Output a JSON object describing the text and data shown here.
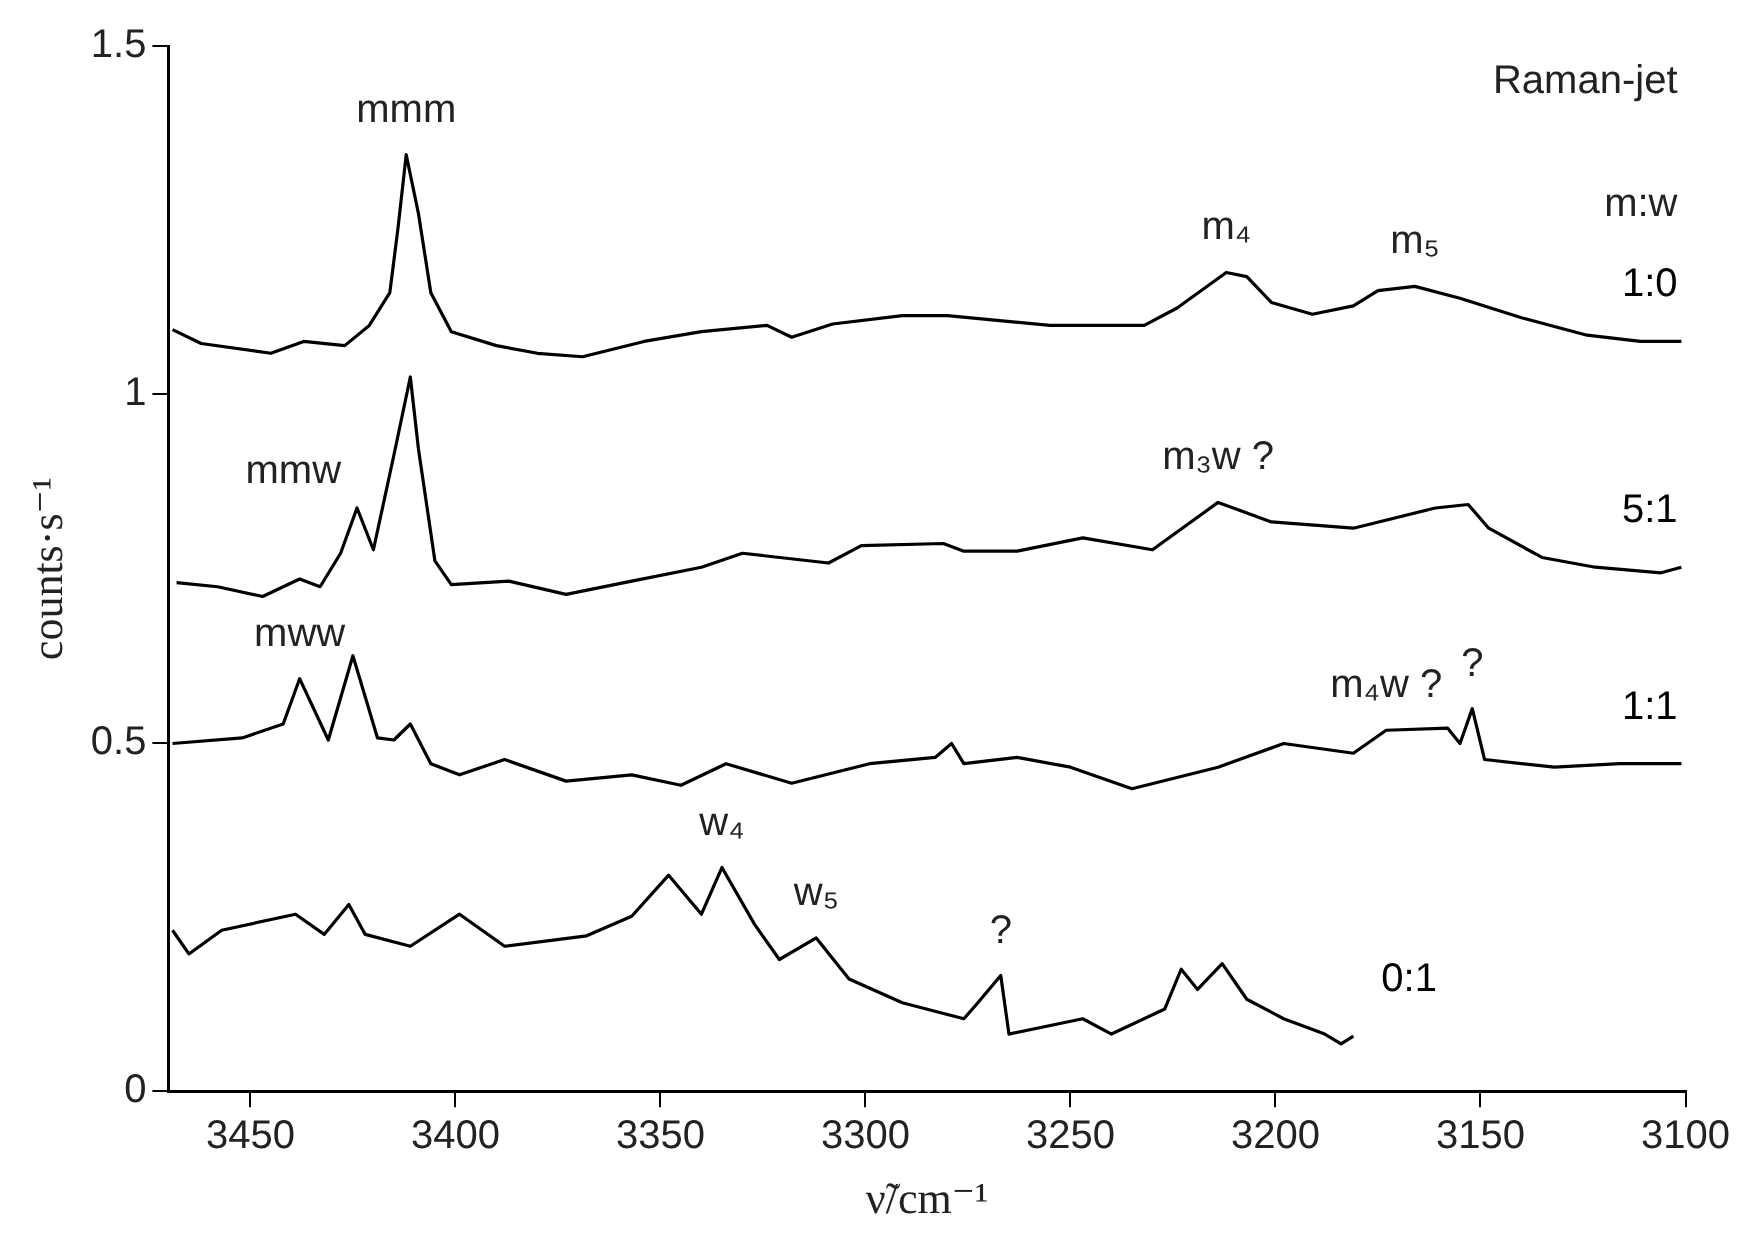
{
  "chart_data": {
    "type": "line",
    "xlabel": "ν̃/cm⁻¹",
    "ylabel": "counts·s⁻¹",
    "legend_title": "m:w",
    "marker": "none",
    "line_style": "solid",
    "grid": false,
    "xlim": [
      3470,
      3100
    ],
    "xticks": [
      3450,
      3400,
      3350,
      3300,
      3250,
      3200,
      3150,
      3100
    ],
    "ylim": [
      0,
      1.5
    ],
    "yticks": [
      0,
      0.5,
      1,
      1.5
    ],
    "series": [
      {
        "name": "1:0",
        "color": "#000000",
        "x": [
          3469,
          3462,
          3445,
          3437,
          3427,
          3421,
          3416,
          3414,
          3412,
          3409,
          3406,
          3401,
          3390,
          3380,
          3369,
          3354,
          3340,
          3324,
          3318,
          3308,
          3291,
          3280,
          3255,
          3232,
          3224,
          3212,
          3207,
          3201,
          3191,
          3181,
          3175,
          3166,
          3155,
          3140,
          3124,
          3111,
          3101
        ],
        "values": [
          1.093,
          1.073,
          1.059,
          1.076,
          1.07,
          1.099,
          1.146,
          1.239,
          1.344,
          1.259,
          1.146,
          1.09,
          1.07,
          1.059,
          1.054,
          1.076,
          1.09,
          1.099,
          1.082,
          1.101,
          1.113,
          1.113,
          1.099,
          1.099,
          1.124,
          1.175,
          1.169,
          1.132,
          1.115,
          1.127,
          1.149,
          1.155,
          1.138,
          1.11,
          1.085,
          1.076,
          1.076
        ]
      },
      {
        "name": "5:1",
        "color": "#000000",
        "x": [
          3468,
          3458,
          3447,
          3438,
          3433,
          3428,
          3424,
          3420,
          3415,
          3411,
          3409,
          3405,
          3401,
          3387,
          3373,
          3357,
          3340,
          3330,
          3309,
          3301,
          3281,
          3276,
          3263,
          3247,
          3230,
          3214,
          3201,
          3181,
          3161,
          3153,
          3148,
          3135,
          3122,
          3106,
          3101
        ],
        "values": [
          0.73,
          0.724,
          0.71,
          0.735,
          0.724,
          0.772,
          0.837,
          0.777,
          0.913,
          1.025,
          0.921,
          0.761,
          0.727,
          0.732,
          0.713,
          0.732,
          0.752,
          0.772,
          0.758,
          0.783,
          0.786,
          0.775,
          0.775,
          0.794,
          0.777,
          0.845,
          0.817,
          0.808,
          0.837,
          0.842,
          0.808,
          0.766,
          0.752,
          0.744,
          0.752
        ]
      },
      {
        "name": "1:1",
        "color": "#000000",
        "x": [
          3469,
          3452,
          3442,
          3438,
          3431,
          3425,
          3419,
          3415,
          3411,
          3406,
          3399,
          3388,
          3373,
          3357,
          3345,
          3334,
          3318,
          3299,
          3283,
          3279,
          3276,
          3263,
          3250,
          3235,
          3214,
          3198,
          3181,
          3173,
          3158,
          3155,
          3152,
          3149,
          3132,
          3116,
          3101
        ],
        "values": [
          0.499,
          0.507,
          0.527,
          0.592,
          0.504,
          0.625,
          0.507,
          0.504,
          0.527,
          0.47,
          0.454,
          0.476,
          0.445,
          0.454,
          0.439,
          0.47,
          0.442,
          0.47,
          0.479,
          0.499,
          0.47,
          0.479,
          0.465,
          0.434,
          0.465,
          0.499,
          0.485,
          0.518,
          0.521,
          0.499,
          0.549,
          0.476,
          0.465,
          0.47,
          0.47
        ]
      },
      {
        "name": "0:1",
        "color": "#000000",
        "x": [
          3469,
          3465,
          3457,
          3439,
          3432,
          3426,
          3422,
          3411,
          3399,
          3388,
          3368,
          3357,
          3348,
          3340,
          3335,
          3327,
          3321,
          3312,
          3304,
          3291,
          3276,
          3273,
          3267,
          3265,
          3247,
          3240,
          3227,
          3223,
          3219,
          3213,
          3207,
          3198,
          3188,
          3184,
          3181
        ],
        "values": [
          0.231,
          0.197,
          0.231,
          0.254,
          0.225,
          0.268,
          0.225,
          0.208,
          0.254,
          0.208,
          0.223,
          0.251,
          0.31,
          0.254,
          0.321,
          0.239,
          0.189,
          0.22,
          0.161,
          0.127,
          0.104,
          0.124,
          0.166,
          0.082,
          0.104,
          0.082,
          0.118,
          0.175,
          0.146,
          0.183,
          0.132,
          0.104,
          0.082,
          0.068,
          0.079
        ]
      }
    ],
    "annotations": [
      "Raman-jet",
      {
        "text": "mmm",
        "x": 3412,
        "y": 1.344
      },
      {
        "text": "m₄",
        "x": 3212,
        "y": 1.175
      },
      {
        "text": "m₅",
        "x": 3166,
        "y": 1.155
      },
      {
        "text": "mmw",
        "x": 3424,
        "y": 0.837
      },
      {
        "text": "m₃w ?",
        "x": 3214,
        "y": 0.845
      },
      {
        "text": "mww",
        "x": 3438,
        "y": 0.592
      },
      {
        "text": "m₄w ?",
        "x": 3173,
        "y": 0.518
      },
      {
        "text": "?",
        "x": 3152,
        "y": 0.549
      },
      {
        "text": "w₄",
        "x": 3335,
        "y": 0.321
      },
      {
        "text": "w₅",
        "x": 3312,
        "y": 0.22
      },
      {
        "text": "?",
        "x": 3267,
        "y": 0.166
      }
    ]
  }
}
